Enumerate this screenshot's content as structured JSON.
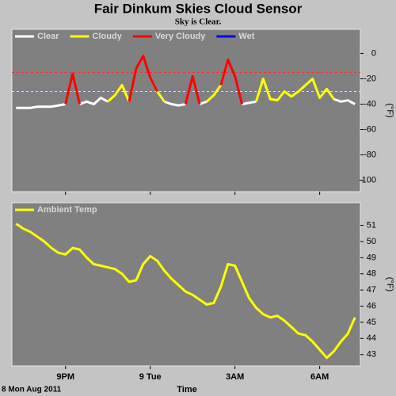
{
  "header": {
    "title": "Fair Dinkum Skies Cloud Sensor",
    "subtitle": "Sky is Clear."
  },
  "chart_data": [
    {
      "type": "line",
      "ylabel": "(°F)",
      "x": [
        19.25,
        19.5,
        19.75,
        20,
        20.25,
        20.5,
        20.75,
        21,
        21.25,
        21.5,
        21.75,
        22,
        22.25,
        22.5,
        22.75,
        23,
        23.25,
        23.5,
        23.75,
        24,
        24.25,
        24.5,
        24.75,
        25,
        25.25,
        25.5,
        25.75,
        26,
        26.25,
        26.5,
        26.75,
        27,
        27.25,
        27.5,
        27.75,
        28,
        28.25,
        28.5,
        28.75,
        29,
        29.25,
        29.5,
        29.75,
        30,
        30.25,
        30.5,
        30.75,
        31,
        31.25
      ],
      "xlim": [
        19.1,
        31.44
      ],
      "xticks": [
        21,
        24,
        27,
        30
      ],
      "ylim": [
        -109,
        19
      ],
      "yticks": [
        0,
        -20,
        -40,
        -60,
        -80,
        -100
      ],
      "reference_lines": [
        {
          "value": -15,
          "color": "#ff3030"
        },
        {
          "value": -30,
          "color": "#ffff00"
        }
      ],
      "series": [
        {
          "name": "Clear",
          "color": "#ffffff",
          "values": [
            -43,
            -43,
            -43,
            -42,
            -42,
            -42,
            -41,
            -40,
            null,
            -40,
            -38,
            -40,
            -35,
            -38,
            null,
            null,
            -38,
            null,
            null,
            null,
            null,
            -38,
            -40,
            -41,
            -40,
            null,
            -40,
            -38,
            null,
            null,
            null,
            null,
            -40,
            -39,
            -38,
            null,
            -36,
            -37,
            null,
            null,
            null,
            null,
            null,
            -35,
            null,
            -36,
            -38,
            -37,
            -40
          ]
        },
        {
          "name": "Cloudy",
          "color": "#ffff00",
          "values": [
            null,
            null,
            null,
            null,
            null,
            null,
            null,
            null,
            null,
            null,
            null,
            null,
            null,
            -38,
            -33,
            -25,
            -38,
            null,
            null,
            -19,
            -30,
            -38,
            null,
            null,
            null,
            null,
            null,
            -38,
            -33,
            -25,
            -5,
            null,
            null,
            null,
            -38,
            -20,
            -36,
            -37,
            -30,
            -34,
            -30,
            -25,
            -20,
            -35,
            -28,
            -36,
            null,
            null,
            null
          ]
        },
        {
          "name": "Very Cloudy",
          "color": "#ff0000",
          "values": [
            null,
            null,
            null,
            null,
            null,
            null,
            null,
            -40,
            -16,
            -40,
            null,
            null,
            null,
            null,
            null,
            null,
            -38,
            -12,
            -2,
            -19,
            -30,
            null,
            null,
            null,
            -40,
            -18,
            -40,
            null,
            null,
            -25,
            -5,
            -18,
            -40,
            null,
            null,
            null,
            null,
            null,
            null,
            null,
            null,
            null,
            null,
            null,
            null,
            null,
            null,
            null,
            null
          ]
        },
        {
          "name": "Wet",
          "color": "#0000ff",
          "values": [
            null,
            null,
            null,
            null,
            null,
            null,
            null,
            null,
            null,
            null,
            null,
            null,
            null,
            null,
            null,
            null,
            null,
            null,
            null,
            null,
            null,
            null,
            null,
            null,
            null,
            null,
            null,
            null,
            null,
            null,
            null,
            null,
            null,
            null,
            null,
            null,
            null,
            null,
            null,
            null,
            null,
            null,
            null,
            null,
            null,
            null,
            null,
            null,
            null
          ]
        }
      ]
    },
    {
      "type": "line",
      "ylabel": "(°F)",
      "xlabel": "Time",
      "date_label": "8 Mon Aug 2011",
      "x": [
        19.25,
        19.5,
        19.75,
        20,
        20.25,
        20.5,
        20.75,
        21,
        21.25,
        21.5,
        21.75,
        22,
        22.25,
        22.5,
        22.75,
        23,
        23.25,
        23.5,
        23.75,
        24,
        24.25,
        24.5,
        24.75,
        25,
        25.25,
        25.5,
        25.75,
        26,
        26.25,
        26.5,
        26.75,
        27,
        27.25,
        27.5,
        27.75,
        28,
        28.25,
        28.5,
        28.75,
        29,
        29.25,
        29.5,
        29.75,
        30,
        30.25,
        30.5,
        30.75,
        31,
        31.25
      ],
      "xlim": [
        19.1,
        31.44
      ],
      "xticks": [
        {
          "value": 21,
          "label": "9PM"
        },
        {
          "value": 24,
          "label": "9 Tue"
        },
        {
          "value": 27,
          "label": "3AM"
        },
        {
          "value": 30,
          "label": "6AM"
        }
      ],
      "ylim": [
        42.3,
        52.4
      ],
      "yticks": [
        43,
        44,
        45,
        46,
        47,
        48,
        49,
        50,
        51
      ],
      "series": [
        {
          "name": "Ambient Temp",
          "color": "#ffff00",
          "values": [
            51.1,
            50.8,
            50.6,
            50.3,
            50.0,
            49.6,
            49.3,
            49.2,
            49.6,
            49.5,
            49.0,
            48.6,
            48.5,
            48.4,
            48.3,
            48.0,
            47.5,
            47.6,
            48.6,
            49.1,
            48.8,
            48.2,
            47.7,
            47.3,
            46.9,
            46.7,
            46.4,
            46.1,
            46.2,
            47.2,
            48.6,
            48.5,
            47.5,
            46.5,
            45.9,
            45.5,
            45.3,
            45.4,
            45.1,
            44.7,
            44.3,
            44.2,
            43.8,
            43.3,
            42.8,
            43.2,
            43.8,
            44.3,
            45.3
          ]
        }
      ]
    }
  ]
}
